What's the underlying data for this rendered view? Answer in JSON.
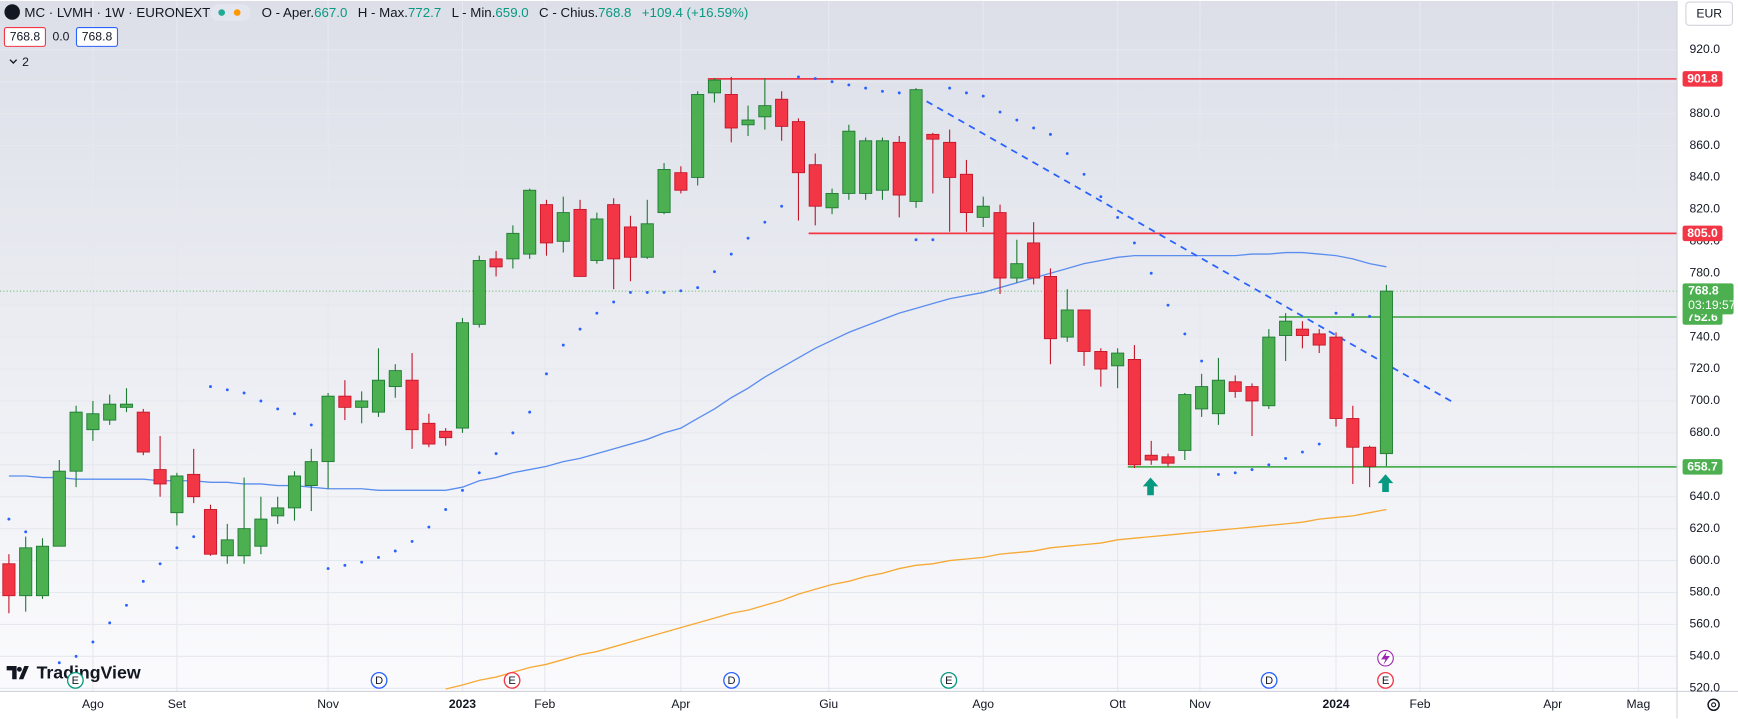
{
  "header": {
    "symbol": "MC · LVMH · 1W · EURONEXT",
    "open_label": "O - Aper.",
    "open": "667.0",
    "high_label": "H - Max.",
    "high": "772.7",
    "low_label": "L - Min.",
    "low": "659.0",
    "close_label": "C - Chius.",
    "close": "768.8",
    "change": "+109.4 (+16.59%)",
    "bid": "768.8",
    "spread": "0.0",
    "ask": "768.8",
    "indicators": "2",
    "currency": "EUR",
    "logo": "TradingView"
  },
  "chart_data": {
    "type": "candlestick",
    "up_color": "#4caf50",
    "down_color": "#f23645",
    "up_border": "#1e7b34",
    "down_border": "#c4162a",
    "open": [
      598,
      578,
      578,
      609,
      656,
      682,
      688,
      696,
      693,
      657,
      630,
      654,
      632,
      603,
      603,
      609,
      628,
      633,
      647,
      662,
      703,
      696,
      693,
      709,
      713,
      686,
      681,
      683,
      748,
      789,
      789,
      792,
      823,
      800,
      820,
      788,
      823,
      809,
      790,
      818,
      843,
      840,
      893,
      892,
      873,
      878,
      889,
      875,
      848,
      821,
      830,
      830,
      832,
      862,
      825,
      867,
      862,
      842,
      815,
      818,
      777,
      799,
      778,
      740,
      757,
      731,
      722,
      726,
      666,
      665,
      669,
      695,
      692,
      712,
      709,
      697,
      741,
      745,
      742,
      740,
      689,
      671,
      667
    ],
    "high": [
      604,
      615,
      614,
      663,
      697,
      700,
      704,
      708,
      695,
      678,
      655,
      670,
      635,
      623,
      652,
      640,
      640,
      656,
      670,
      705,
      713,
      706,
      733,
      723,
      730,
      692,
      683,
      752,
      791,
      794,
      810,
      833,
      826,
      828,
      826,
      818,
      827,
      816,
      826,
      849,
      847,
      894,
      902,
      903,
      885,
      902,
      894,
      877,
      855,
      833,
      873,
      865,
      865,
      866,
      896,
      868,
      870,
      851,
      828,
      823,
      801,
      812,
      783,
      770,
      757,
      733,
      733,
      735,
      675,
      667,
      705,
      717,
      727,
      716,
      711,
      745,
      755,
      750,
      745,
      743,
      697,
      672,
      772.7
    ],
    "low": [
      567,
      568,
      576,
      609,
      646,
      675,
      685,
      693,
      666,
      640,
      622,
      636,
      603,
      598,
      598,
      604,
      623,
      625,
      631,
      645,
      688,
      686,
      690,
      702,
      670,
      671,
      672,
      680,
      746,
      778,
      783,
      789,
      791,
      793,
      778,
      786,
      770,
      775,
      789,
      817,
      830,
      835,
      887,
      862,
      866,
      870,
      863,
      813,
      810,
      817,
      826,
      826,
      826,
      815,
      821,
      830,
      806,
      806,
      809,
      767,
      774,
      773,
      723,
      737,
      722,
      709,
      708,
      658,
      660,
      659,
      663,
      690,
      685,
      702,
      678,
      695,
      725,
      733,
      730,
      684,
      648,
      646,
      659
    ],
    "close": [
      578,
      608,
      609,
      656,
      693,
      692,
      698,
      698,
      668,
      648,
      653,
      640,
      604,
      613,
      620,
      626,
      633,
      653,
      662,
      703,
      696,
      700,
      713,
      719,
      682,
      673,
      677,
      749,
      788,
      784,
      805,
      832,
      799,
      818,
      778,
      814,
      789,
      790,
      811,
      845,
      832,
      892,
      901,
      871,
      876,
      885,
      872,
      843,
      822,
      830,
      869,
      863,
      863,
      829,
      895,
      864,
      840,
      818,
      822,
      777,
      786,
      777,
      739,
      757,
      731,
      720,
      730,
      660,
      663,
      661,
      704,
      709,
      713,
      706,
      700,
      740,
      750,
      741,
      735,
      689,
      671,
      659,
      768.8
    ],
    "lines": [
      {
        "color": "#5b8def",
        "values": [
          653,
          653,
          652,
          652,
          651,
          651,
          651,
          651,
          651,
          650,
          650,
          650,
          649,
          649,
          648,
          648,
          647,
          647,
          646,
          645,
          645,
          645,
          644,
          644,
          644,
          644,
          644,
          646,
          650,
          652,
          655,
          657,
          659,
          662,
          664,
          667,
          670,
          673,
          676,
          680,
          683,
          689,
          695,
          702,
          708,
          715,
          721,
          727,
          733,
          738,
          743,
          747,
          751,
          755,
          758,
          761,
          764,
          766,
          768,
          771,
          774,
          777,
          780,
          783,
          786,
          788,
          790,
          791,
          791,
          791,
          791,
          791,
          791,
          791,
          792,
          792,
          793,
          793,
          792,
          791,
          789,
          786,
          784
        ]
      },
      {
        "color": "#f7a935",
        "values": [
          null,
          null,
          null,
          null,
          null,
          null,
          null,
          null,
          null,
          null,
          null,
          null,
          null,
          null,
          null,
          null,
          null,
          null,
          null,
          null,
          null,
          null,
          null,
          null,
          null,
          null,
          519.5,
          522,
          525,
          527,
          530,
          533,
          535,
          538,
          541,
          543,
          546,
          549,
          552,
          555,
          558,
          561,
          564,
          567,
          569,
          572,
          575,
          579,
          582,
          585,
          587,
          590,
          592,
          595,
          597,
          598,
          600,
          601,
          602,
          604,
          605,
          606,
          608,
          609,
          610,
          611,
          613,
          614,
          615,
          616,
          617,
          618,
          619,
          620,
          621,
          622,
          623,
          624,
          626,
          627,
          628,
          630,
          632
        ]
      }
    ],
    "sar": {
      "color": "#2962ff",
      "values": [
        626,
        618,
        532,
        536,
        540,
        549,
        561,
        572,
        587,
        598,
        608,
        615,
        709,
        707,
        705,
        700,
        695,
        692,
        685,
        595,
        597,
        599,
        602,
        606,
        612,
        621,
        632,
        644,
        655,
        667,
        680,
        693,
        717,
        735,
        745,
        755,
        762,
        768,
        768,
        768,
        769,
        771,
        781,
        792,
        802,
        812,
        822,
        903,
        902,
        900,
        898,
        896,
        894,
        893,
        801,
        801,
        896,
        893,
        891,
        881,
        876,
        871,
        867,
        855,
        842,
        828,
        815,
        799,
        780,
        760,
        742,
        725,
        654,
        655,
        657,
        660,
        664,
        668,
        673,
        755,
        754,
        753,
        null
      ]
    },
    "levels": [
      {
        "value": 901.8,
        "color": "#f23645"
      },
      {
        "value": 805,
        "label": "805.0",
        "color": "#f23645"
      },
      {
        "value": 752.6,
        "color": "#4caf50"
      },
      {
        "value": 658.7,
        "color": "#4caf50"
      }
    ],
    "trendline": {
      "color": "#2962ff",
      "values": [
        891.5,
        699
      ]
    },
    "countdown": "03:19:57",
    "events": [
      {
        "label": "E",
        "color": "#089981"
      },
      {
        "label": "D",
        "color": "#2962ff"
      },
      {
        "label": "E",
        "color": "#f23645"
      },
      {
        "label": "D",
        "color": "#2962ff"
      },
      {
        "label": "E",
        "color": "#089981"
      },
      {
        "label": "D",
        "color": "#2962ff"
      },
      {
        "label": "E",
        "color": "#f23645"
      }
    ],
    "xlim": [
      -0.53,
      99.3
    ],
    "ylim": [
      518,
      950.6
    ],
    "xticks": [
      {
        "value": 5,
        "label": "Ago"
      },
      {
        "value": 10,
        "label": "Set"
      },
      {
        "value": 19,
        "label": "Nov"
      },
      {
        "value": 27,
        "label": "2023"
      },
      {
        "value": 31.9,
        "label": "Feb"
      },
      {
        "value": 40,
        "label": "Apr"
      },
      {
        "value": 48.8,
        "label": "Giu"
      },
      {
        "value": 58,
        "label": "Ago"
      },
      {
        "value": 66,
        "label": "Ott"
      },
      {
        "value": 70.9,
        "label": "Nov"
      },
      {
        "value": 79,
        "label": "2024"
      },
      {
        "value": 84,
        "label": "Feb"
      },
      {
        "value": 91.9,
        "label": "Apr"
      },
      {
        "value": 97,
        "label": "Mag"
      }
    ],
    "yticks": [
      {
        "value": 520,
        "label": "520.0"
      },
      {
        "value": 540,
        "label": "540.0"
      },
      {
        "value": 560,
        "label": "560.0"
      },
      {
        "value": 580,
        "label": "580.0"
      },
      {
        "value": 600,
        "label": "600.0"
      },
      {
        "value": 620,
        "label": "620.0"
      },
      {
        "value": 640,
        "label": "640.0"
      },
      {
        "value": 660,
        "label": "660.0"
      },
      {
        "value": 680,
        "label": "680.0"
      },
      {
        "value": 700,
        "label": "700.0"
      },
      {
        "value": 720,
        "label": "720.0"
      },
      {
        "value": 740,
        "label": "740.0"
      },
      {
        "value": 760,
        "label": "760.0"
      },
      {
        "value": 780,
        "label": "780.0"
      },
      {
        "value": 800,
        "label": "800.0"
      },
      {
        "value": 820,
        "label": "820.0"
      },
      {
        "value": 840,
        "label": "840.0"
      },
      {
        "value": 860,
        "label": "860.0"
      },
      {
        "value": 880,
        "label": "880.0"
      },
      {
        "value": 900,
        "label": "900.0"
      },
      {
        "value": 920,
        "label": "920.0"
      }
    ],
    "grid": true
  }
}
